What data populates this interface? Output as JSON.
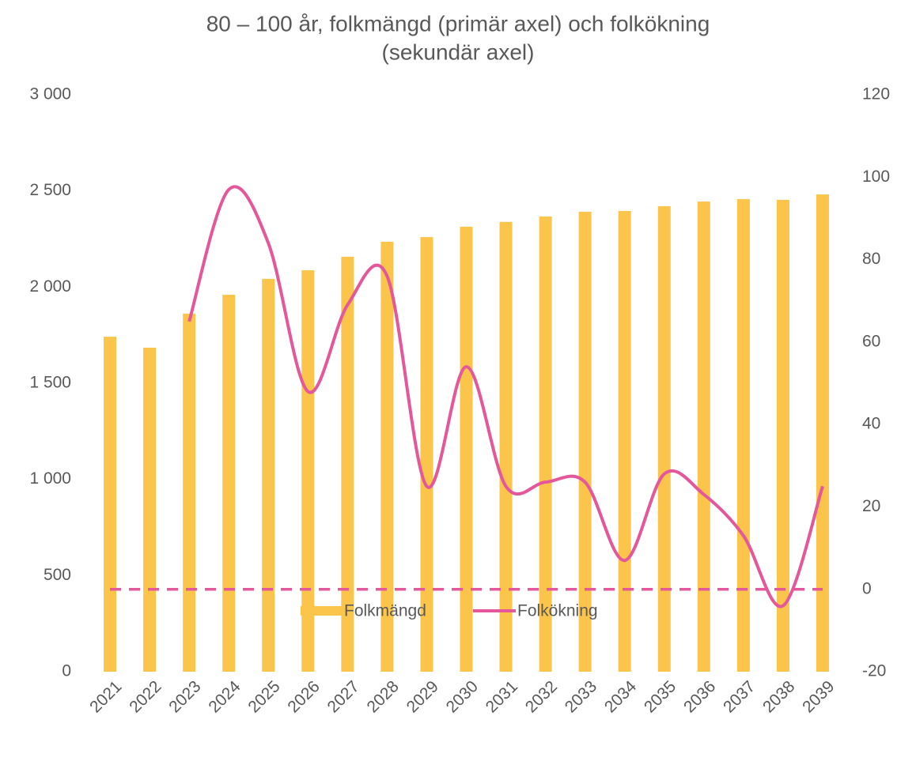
{
  "chart_data": {
    "type": "bar_line",
    "title": [
      "80 – 100 år, folkmängd (primär axel) och folkökning",
      "(sekundär axel)"
    ],
    "categories": [
      "2021",
      "2022",
      "2023",
      "2024",
      "2025",
      "2026",
      "2027",
      "2028",
      "2029",
      "2030",
      "2031",
      "2032",
      "2033",
      "2034",
      "2035",
      "2036",
      "2037",
      "2038",
      "2039"
    ],
    "series": [
      {
        "name": "Folkmängd",
        "type": "bar",
        "color": "#fbc54b",
        "values": [
          1742,
          1685,
          1862,
          1960,
          2043,
          2088,
          2158,
          2236,
          2260,
          2314,
          2339,
          2367,
          2392,
          2396,
          2421,
          2445,
          2458,
          2454,
          2482
        ]
      },
      {
        "name": "Folkökning",
        "type": "line",
        "axis": "y2",
        "color": "#e4579a",
        "smooth": true,
        "values": [
          null,
          null,
          65,
          97,
          84,
          48,
          69,
          76,
          25,
          54,
          25,
          26,
          26,
          7,
          28,
          23,
          13,
          -4,
          25
        ]
      }
    ],
    "y2_reference_line": 0,
    "ylim": [
      0,
      3000
    ],
    "yticks": [
      0,
      500,
      {
        "value": 1000,
        "label": "1 000"
      },
      {
        "value": 1500,
        "label": "1 500"
      },
      {
        "value": 2000,
        "label": "2 000"
      },
      {
        "value": 2500,
        "label": "2 500"
      },
      {
        "value": 3000,
        "label": "3 000"
      }
    ],
    "y2lim": [
      -20,
      120
    ],
    "y2ticks": [
      -20,
      0,
      20,
      40,
      60,
      80,
      100,
      120
    ],
    "legend": "bottom"
  }
}
